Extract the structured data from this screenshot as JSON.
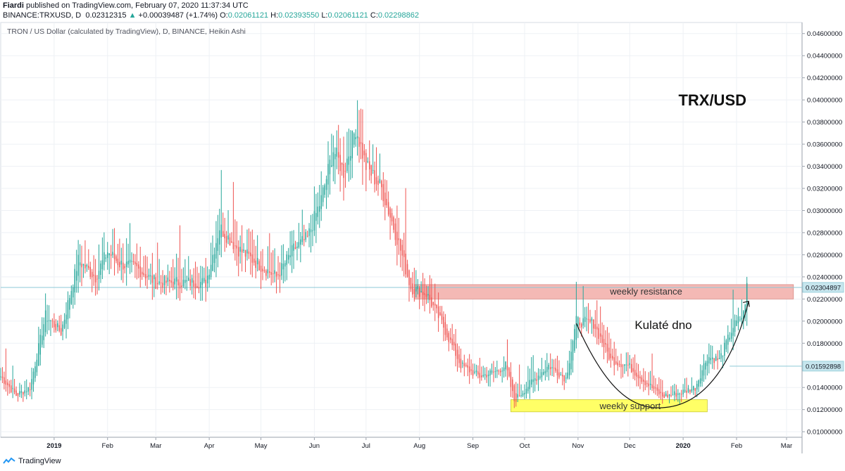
{
  "header": {
    "author": "Fiardi",
    "published": "published on TradingView.com, February 07, 2020 11:37:34 UTC",
    "symbol": "BINANCE:TRXUSD, D",
    "price": "0.02312315",
    "change": "+0.00039487 (+1.74%)",
    "open_label": "O:",
    "open": "0.02061121",
    "high_label": "H:",
    "high": "0.02393550",
    "low_label": "L:",
    "low": "0.02061121",
    "close_label": "C:",
    "close": "0.02298862"
  },
  "footer": {
    "brand": "TradingView"
  },
  "colors": {
    "up": "#26a69a",
    "down": "#ef5350",
    "resistance_fill": "#f4b9b5",
    "support_fill": "#ffff66",
    "price_line": "#8ec9d6"
  },
  "chart_data": {
    "type": "candlestick",
    "subtitle": "TRON / US Dollar (calculated by TradingView), D, BINANCE, Heikin Ashi",
    "title": "TRX/USD",
    "x_tick_labels": [
      "2019",
      "Feb",
      "Mar",
      "Apr",
      "May",
      "Jun",
      "Jul",
      "Aug",
      "Sep",
      "Oct",
      "Nov",
      "Dec",
      "2020",
      "Feb",
      "Mar"
    ],
    "y_tick_labels": [
      "0.04600000",
      "0.04400000",
      "0.04200000",
      "0.04000000",
      "0.03800000",
      "0.03600000",
      "0.03400000",
      "0.03200000",
      "0.03000000",
      "0.02800000",
      "0.02600000",
      "0.02400000",
      "0.02200000",
      "0.02000000",
      "0.01800000",
      "0.01400000",
      "0.01200000",
      "0.01000000"
    ],
    "ylim": [
      0.0095,
      0.047
    ],
    "x_range": [
      "2018-12-01",
      "2020-03-10"
    ],
    "price_markers": [
      {
        "value": 0.02304897,
        "label": "0.02304897"
      },
      {
        "value": 0.01592898,
        "label": "0.01592898"
      }
    ],
    "annotations": [
      {
        "text": "weekly resistance",
        "from": "2019-07-29",
        "to": "2020-03-05",
        "low": 0.022,
        "high": 0.0233
      },
      {
        "text": "weekly support",
        "from": "2019-09-23",
        "to": "2020-01-15",
        "low": 0.0118,
        "high": 0.0129
      },
      {
        "text": "Kulaté dno"
      }
    ],
    "anchors": [
      [
        "2018-12-01",
        0.015
      ],
      [
        "2018-12-10",
        0.0133
      ],
      [
        "2018-12-18",
        0.014
      ],
      [
        "2018-12-27",
        0.0205
      ],
      [
        "2019-01-05",
        0.019
      ],
      [
        "2019-01-15",
        0.0255
      ],
      [
        "2019-01-25",
        0.024
      ],
      [
        "2019-02-01",
        0.0263
      ],
      [
        "2019-02-08",
        0.0252
      ],
      [
        "2019-02-18",
        0.0248
      ],
      [
        "2019-03-01",
        0.0235
      ],
      [
        "2019-03-15",
        0.0235
      ],
      [
        "2019-03-30",
        0.0235
      ],
      [
        "2019-04-07",
        0.0285
      ],
      [
        "2019-04-18",
        0.0265
      ],
      [
        "2019-05-01",
        0.025
      ],
      [
        "2019-05-10",
        0.024
      ],
      [
        "2019-05-20",
        0.0265
      ],
      [
        "2019-05-28",
        0.0275
      ],
      [
        "2019-06-05",
        0.031
      ],
      [
        "2019-06-12",
        0.0355
      ],
      [
        "2019-06-18",
        0.0335
      ],
      [
        "2019-06-25",
        0.0375
      ],
      [
        "2019-07-01",
        0.034
      ],
      [
        "2019-07-10",
        0.032
      ],
      [
        "2019-07-20",
        0.027
      ],
      [
        "2019-07-27",
        0.023
      ],
      [
        "2019-08-05",
        0.0225
      ],
      [
        "2019-08-15",
        0.0195
      ],
      [
        "2019-08-25",
        0.016
      ],
      [
        "2019-09-05",
        0.015
      ],
      [
        "2019-09-15",
        0.0155
      ],
      [
        "2019-09-20",
        0.016
      ],
      [
        "2019-09-25",
        0.0128
      ],
      [
        "2019-10-05",
        0.0145
      ],
      [
        "2019-10-15",
        0.016
      ],
      [
        "2019-10-25",
        0.0148
      ],
      [
        "2019-10-31",
        0.02
      ],
      [
        "2019-11-10",
        0.0198
      ],
      [
        "2019-11-20",
        0.0165
      ],
      [
        "2019-11-30",
        0.016
      ],
      [
        "2019-12-10",
        0.0145
      ],
      [
        "2019-12-20",
        0.0132
      ],
      [
        "2019-12-30",
        0.0135
      ],
      [
        "2020-01-08",
        0.014
      ],
      [
        "2020-01-15",
        0.0168
      ],
      [
        "2020-01-22",
        0.0165
      ],
      [
        "2020-01-30",
        0.0195
      ],
      [
        "2020-02-05",
        0.0206
      ],
      [
        "2020-02-07",
        0.0231
      ]
    ]
  }
}
